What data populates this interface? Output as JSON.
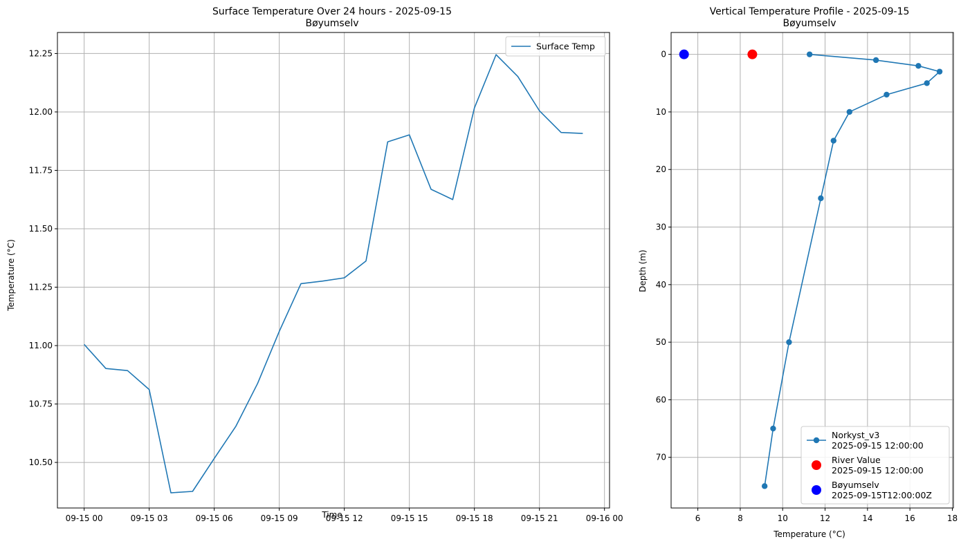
{
  "figure": {
    "background": "#ffffff",
    "line_color": "#1f77b4",
    "grid_color": "#b0b0b0"
  },
  "chart_data": [
    {
      "type": "line",
      "title": "Surface Temperature Over 24 hours - 2025-09-15",
      "subtitle": "Bøyumselv",
      "xlabel": "Time",
      "ylabel": "Temperature (°C)",
      "grid": true,
      "legend": {
        "placement": "upper right",
        "entries": [
          "Surface Temp"
        ]
      },
      "xlim": [
        "2025-09-14 22:46",
        "2025-09-16 00:14"
      ],
      "ylim": [
        10.305,
        12.34
      ],
      "x_ticks": [
        {
          "value": "2025-09-15 00:00",
          "label": "09-15 00"
        },
        {
          "value": "2025-09-15 03:00",
          "label": "09-15 03"
        },
        {
          "value": "2025-09-15 06:00",
          "label": "09-15 06"
        },
        {
          "value": "2025-09-15 09:00",
          "label": "09-15 09"
        },
        {
          "value": "2025-09-15 12:00",
          "label": "09-15 12"
        },
        {
          "value": "2025-09-15 15:00",
          "label": "09-15 15"
        },
        {
          "value": "2025-09-15 18:00",
          "label": "09-15 18"
        },
        {
          "value": "2025-09-15 21:00",
          "label": "09-15 21"
        },
        {
          "value": "2025-09-16 00:00",
          "label": "09-16 00"
        }
      ],
      "y_ticks": [
        {
          "value": 10.5,
          "label": "10.50"
        },
        {
          "value": 10.75,
          "label": "10.75"
        },
        {
          "value": 11.0,
          "label": "11.00"
        },
        {
          "value": 11.25,
          "label": "11.25"
        },
        {
          "value": 11.5,
          "label": "11.50"
        },
        {
          "value": 11.75,
          "label": "11.75"
        },
        {
          "value": 12.0,
          "label": "12.00"
        },
        {
          "value": 12.25,
          "label": "12.25"
        }
      ],
      "series": [
        {
          "name": "Surface Temp",
          "color": "#1f77b4",
          "x": [
            "2025-09-15 00:00",
            "2025-09-15 01:00",
            "2025-09-15 02:00",
            "2025-09-15 03:00",
            "2025-09-15 04:00",
            "2025-09-15 05:00",
            "2025-09-15 06:00",
            "2025-09-15 07:00",
            "2025-09-15 08:00",
            "2025-09-15 09:00",
            "2025-09-15 10:00",
            "2025-09-15 11:00",
            "2025-09-15 12:00",
            "2025-09-15 13:00",
            "2025-09-15 14:00",
            "2025-09-15 15:00",
            "2025-09-15 16:00",
            "2025-09-15 17:00",
            "2025-09-15 18:00",
            "2025-09-15 19:00",
            "2025-09-15 20:00",
            "2025-09-15 21:00",
            "2025-09-15 22:00",
            "2025-09-15 23:00"
          ],
          "y": [
            11.005,
            10.902,
            10.893,
            10.812,
            10.37,
            10.376,
            10.517,
            10.655,
            10.838,
            11.061,
            11.265,
            11.276,
            11.29,
            11.362,
            11.872,
            11.902,
            11.669,
            11.625,
            12.017,
            12.245,
            12.152,
            12.005,
            11.912,
            11.908
          ]
        }
      ]
    },
    {
      "type": "line",
      "title": "Vertical Temperature Profile - 2025-09-15",
      "subtitle": "Bøyumselv",
      "xlabel": "Temperature (°C)",
      "ylabel": "Depth (m)",
      "grid": true,
      "y_inverted": true,
      "legend": {
        "placement": "lower right"
      },
      "xlim": [
        4.74,
        18.05
      ],
      "ylim": [
        78.8,
        -3.8
      ],
      "x_ticks": [
        {
          "value": 6,
          "label": "6"
        },
        {
          "value": 8,
          "label": "8"
        },
        {
          "value": 10,
          "label": "10"
        },
        {
          "value": 12,
          "label": "12"
        },
        {
          "value": 14,
          "label": "14"
        },
        {
          "value": 16,
          "label": "16"
        },
        {
          "value": 18,
          "label": "18"
        }
      ],
      "y_ticks": [
        {
          "value": 0,
          "label": "0"
        },
        {
          "value": 10,
          "label": "10"
        },
        {
          "value": 20,
          "label": "20"
        },
        {
          "value": 30,
          "label": "30"
        },
        {
          "value": 40,
          "label": "40"
        },
        {
          "value": 50,
          "label": "50"
        },
        {
          "value": 60,
          "label": "60"
        },
        {
          "value": 70,
          "label": "70"
        }
      ],
      "series": [
        {
          "name": "Norkyst_v3",
          "name_line2": "2025-09-15 12:00:00",
          "color": "#1f77b4",
          "marker": "circle",
          "line": true,
          "temperature": [
            11.27,
            14.4,
            16.4,
            17.4,
            16.8,
            14.9,
            13.15,
            12.4,
            11.8,
            10.3,
            9.55,
            9.15
          ],
          "depth": [
            0,
            1,
            2,
            3,
            5,
            7,
            10,
            15,
            25,
            50,
            65,
            75
          ]
        },
        {
          "name": "River Value",
          "name_line2": "2025-09-15 12:00:00",
          "color": "#ff0000",
          "marker": "circle",
          "line": false,
          "temperature": [
            8.57
          ],
          "depth": [
            0
          ]
        },
        {
          "name": "Bøyumselv",
          "name_line2": "2025-09-15T12:00:00Z",
          "color": "#0000ff",
          "marker": "circle",
          "line": false,
          "temperature": [
            5.35
          ],
          "depth": [
            0
          ]
        }
      ]
    }
  ]
}
